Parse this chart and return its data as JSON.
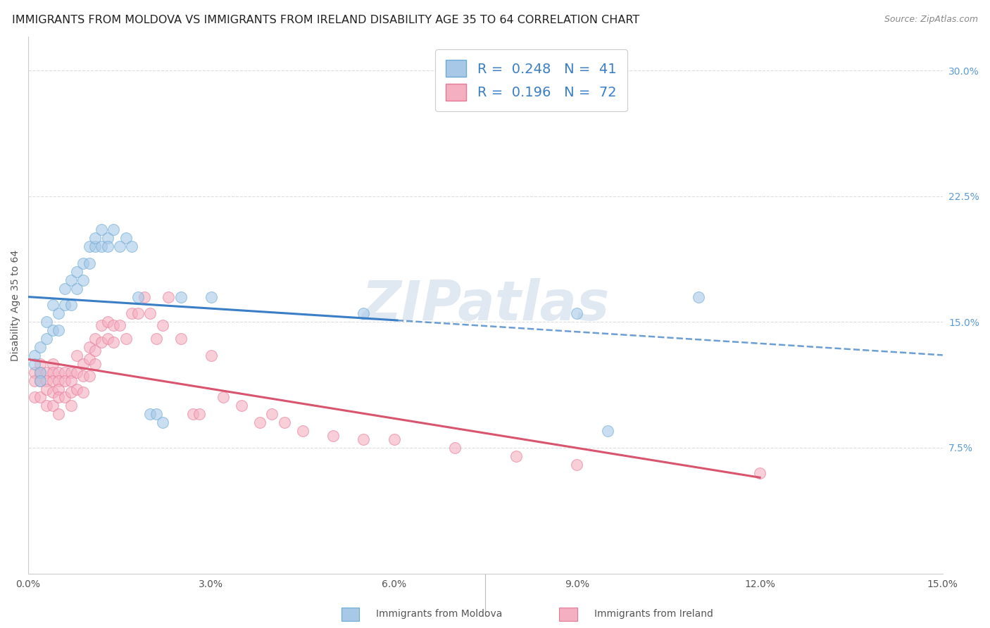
{
  "title": "IMMIGRANTS FROM MOLDOVA VS IMMIGRANTS FROM IRELAND DISABILITY AGE 35 TO 64 CORRELATION CHART",
  "source": "Source: ZipAtlas.com",
  "ylabel": "Disability Age 35 to 64",
  "xlim": [
    0.0,
    0.15
  ],
  "ylim": [
    0.0,
    0.32
  ],
  "xticks": [
    0.0,
    0.03,
    0.06,
    0.09,
    0.12,
    0.15
  ],
  "xtick_labels": [
    "0.0%",
    "3.0%",
    "6.0%",
    "9.0%",
    "12.0%",
    "15.0%"
  ],
  "yticks": [
    0.0,
    0.075,
    0.15,
    0.225,
    0.3
  ],
  "ytick_labels": [
    "",
    "7.5%",
    "15.0%",
    "22.5%",
    "30.0%"
  ],
  "moldova_color": "#a8c8e8",
  "ireland_color": "#f4afc0",
  "moldova_edge": "#6aaad4",
  "ireland_edge": "#e87898",
  "trend_moldova_color": "#3a7ec6",
  "trend_ireland_color": "#d9546e",
  "moldova_R": 0.248,
  "moldova_N": 41,
  "ireland_R": 0.196,
  "ireland_N": 72,
  "moldova_x": [
    0.001,
    0.001,
    0.002,
    0.002,
    0.002,
    0.003,
    0.003,
    0.004,
    0.004,
    0.005,
    0.005,
    0.006,
    0.006,
    0.007,
    0.007,
    0.008,
    0.008,
    0.009,
    0.009,
    0.01,
    0.01,
    0.011,
    0.011,
    0.012,
    0.012,
    0.013,
    0.013,
    0.014,
    0.015,
    0.016,
    0.017,
    0.018,
    0.02,
    0.021,
    0.022,
    0.025,
    0.03,
    0.055,
    0.09,
    0.095,
    0.11
  ],
  "moldova_y": [
    0.13,
    0.125,
    0.135,
    0.12,
    0.115,
    0.15,
    0.14,
    0.145,
    0.16,
    0.155,
    0.145,
    0.16,
    0.17,
    0.16,
    0.175,
    0.17,
    0.18,
    0.175,
    0.185,
    0.185,
    0.195,
    0.195,
    0.2,
    0.195,
    0.205,
    0.2,
    0.195,
    0.205,
    0.195,
    0.2,
    0.195,
    0.165,
    0.095,
    0.095,
    0.09,
    0.165,
    0.165,
    0.155,
    0.155,
    0.085,
    0.165
  ],
  "ireland_x": [
    0.001,
    0.001,
    0.001,
    0.002,
    0.002,
    0.002,
    0.002,
    0.003,
    0.003,
    0.003,
    0.003,
    0.004,
    0.004,
    0.004,
    0.004,
    0.004,
    0.005,
    0.005,
    0.005,
    0.005,
    0.005,
    0.006,
    0.006,
    0.006,
    0.007,
    0.007,
    0.007,
    0.007,
    0.008,
    0.008,
    0.008,
    0.009,
    0.009,
    0.009,
    0.01,
    0.01,
    0.01,
    0.011,
    0.011,
    0.011,
    0.012,
    0.012,
    0.013,
    0.013,
    0.014,
    0.014,
    0.015,
    0.016,
    0.017,
    0.018,
    0.019,
    0.02,
    0.021,
    0.022,
    0.023,
    0.025,
    0.027,
    0.028,
    0.03,
    0.032,
    0.035,
    0.038,
    0.04,
    0.042,
    0.045,
    0.05,
    0.055,
    0.06,
    0.07,
    0.08,
    0.09,
    0.12
  ],
  "ireland_y": [
    0.12,
    0.115,
    0.105,
    0.125,
    0.12,
    0.115,
    0.105,
    0.12,
    0.115,
    0.11,
    0.1,
    0.125,
    0.12,
    0.115,
    0.108,
    0.1,
    0.12,
    0.115,
    0.11,
    0.105,
    0.095,
    0.12,
    0.115,
    0.105,
    0.12,
    0.115,
    0.108,
    0.1,
    0.13,
    0.12,
    0.11,
    0.125,
    0.118,
    0.108,
    0.135,
    0.128,
    0.118,
    0.14,
    0.133,
    0.125,
    0.148,
    0.138,
    0.15,
    0.14,
    0.148,
    0.138,
    0.148,
    0.14,
    0.155,
    0.155,
    0.165,
    0.155,
    0.14,
    0.148,
    0.165,
    0.14,
    0.095,
    0.095,
    0.13,
    0.105,
    0.1,
    0.09,
    0.095,
    0.09,
    0.085,
    0.082,
    0.08,
    0.08,
    0.075,
    0.07,
    0.065,
    0.06
  ],
  "background_color": "#ffffff",
  "grid_color": "#dddddd",
  "marker_size": 130,
  "marker_alpha": 0.6,
  "title_fontsize": 11.5,
  "axis_label_fontsize": 10,
  "tick_fontsize": 10,
  "legend_fontsize": 14,
  "source_fontsize": 9,
  "watermark": "ZIPatlas"
}
